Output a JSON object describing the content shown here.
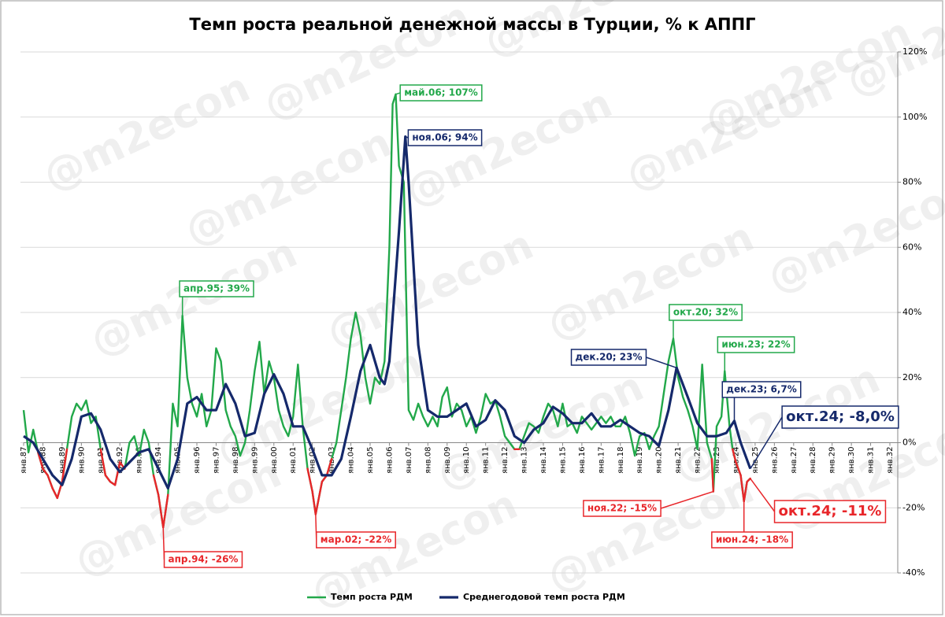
{
  "chart_data": {
    "type": "line",
    "title": "Темп роста реальной денежной массы в Турции, % к АППГ",
    "watermark": "@m2econ",
    "xlim": [
      1987,
      2032
    ],
    "xticks": [
      {
        "value": 1987,
        "label": "янв.87"
      },
      {
        "value": 1988,
        "label": "янв.88"
      },
      {
        "value": 1989,
        "label": "янв.89"
      },
      {
        "value": 1990,
        "label": "янв.90"
      },
      {
        "value": 1991,
        "label": "янв.91"
      },
      {
        "value": 1992,
        "label": "янв.92"
      },
      {
        "value": 1993,
        "label": "янв.93"
      },
      {
        "value": 1994,
        "label": "янв.94"
      },
      {
        "value": 1995,
        "label": "янв.95"
      },
      {
        "value": 1996,
        "label": "янв.96"
      },
      {
        "value": 1997,
        "label": "янв.97"
      },
      {
        "value": 1998,
        "label": "янв.98"
      },
      {
        "value": 1999,
        "label": "янв.99"
      },
      {
        "value": 2000,
        "label": "янв.00"
      },
      {
        "value": 2001,
        "label": "янв.01"
      },
      {
        "value": 2002,
        "label": "янв.02"
      },
      {
        "value": 2003,
        "label": "янв.03"
      },
      {
        "value": 2004,
        "label": "янв.04"
      },
      {
        "value": 2005,
        "label": "янв.05"
      },
      {
        "value": 2006,
        "label": "янв.06"
      },
      {
        "value": 2007,
        "label": "янв.07"
      },
      {
        "value": 2008,
        "label": "янв.08"
      },
      {
        "value": 2009,
        "label": "янв.09"
      },
      {
        "value": 2010,
        "label": "янв.10"
      },
      {
        "value": 2011,
        "label": "янв.11"
      },
      {
        "value": 2012,
        "label": "янв.12"
      },
      {
        "value": 2013,
        "label": "янв.13"
      },
      {
        "value": 2014,
        "label": "янв.14"
      },
      {
        "value": 2015,
        "label": "янв.15"
      },
      {
        "value": 2016,
        "label": "янв.16"
      },
      {
        "value": 2017,
        "label": "янв.17"
      },
      {
        "value": 2018,
        "label": "янв.18"
      },
      {
        "value": 2019,
        "label": "янв.19"
      },
      {
        "value": 2020,
        "label": "янв.20"
      },
      {
        "value": 2021,
        "label": "янв.21"
      },
      {
        "value": 2022,
        "label": "янв.22"
      },
      {
        "value": 2023,
        "label": "янв.23"
      },
      {
        "value": 2024,
        "label": "янв.24"
      },
      {
        "value": 2025,
        "label": "янв.25"
      },
      {
        "value": 2026,
        "label": "янв.26"
      },
      {
        "value": 2027,
        "label": "янв.27"
      },
      {
        "value": 2028,
        "label": "янв.28"
      },
      {
        "value": 2029,
        "label": "янв.29"
      },
      {
        "value": 2030,
        "label": "янв.30"
      },
      {
        "value": 2031,
        "label": "янв.31"
      },
      {
        "value": 2032,
        "label": "янв.32"
      }
    ],
    "ylim": [
      -40,
      120
    ],
    "yticks": [
      {
        "value": -40,
        "label": "-40%"
      },
      {
        "value": -20,
        "label": "-20%"
      },
      {
        "value": 0,
        "label": "0%"
      },
      {
        "value": 20,
        "label": "20%"
      },
      {
        "value": 40,
        "label": "40%"
      },
      {
        "value": 60,
        "label": "60%"
      },
      {
        "value": 80,
        "label": "80%"
      },
      {
        "value": 100,
        "label": "100%"
      },
      {
        "value": 120,
        "label": "120%"
      }
    ],
    "grid": true,
    "legend": "bottom",
    "series": [
      {
        "name": "Темп роста РДМ",
        "color": "#22a84a",
        "negative_color": "#e8262a",
        "x": [
          1987,
          1987.25,
          1987.5,
          1987.75,
          1988,
          1988.25,
          1988.5,
          1988.75,
          1989,
          1989.25,
          1989.5,
          1989.75,
          1990,
          1990.25,
          1990.5,
          1990.75,
          1991,
          1991.25,
          1991.5,
          1991.75,
          1992,
          1992.25,
          1992.5,
          1992.75,
          1993,
          1993.25,
          1993.5,
          1993.75,
          1994,
          1994.25,
          1994.5,
          1994.75,
          1995,
          1995.25,
          1995.5,
          1995.75,
          1996,
          1996.25,
          1996.5,
          1996.75,
          1997,
          1997.25,
          1997.5,
          1997.75,
          1998,
          1998.25,
          1998.5,
          1998.75,
          1999,
          1999.25,
          1999.5,
          1999.75,
          2000,
          2000.25,
          2000.5,
          2000.75,
          2001,
          2001.25,
          2001.5,
          2001.75,
          2002,
          2002.17,
          2002.5,
          2002.75,
          2003,
          2003.25,
          2003.5,
          2003.75,
          2004,
          2004.25,
          2004.5,
          2004.75,
          2005,
          2005.25,
          2005.5,
          2005.75,
          2006,
          2006.17,
          2006.33,
          2006.5,
          2006.75,
          2007,
          2007.25,
          2007.5,
          2007.75,
          2008,
          2008.25,
          2008.5,
          2008.75,
          2009,
          2009.25,
          2009.5,
          2009.75,
          2010,
          2010.25,
          2010.5,
          2010.75,
          2011,
          2011.25,
          2011.5,
          2011.75,
          2012,
          2012.25,
          2012.5,
          2012.75,
          2013,
          2013.25,
          2013.5,
          2013.75,
          2014,
          2014.25,
          2014.5,
          2014.75,
          2015,
          2015.25,
          2015.5,
          2015.75,
          2016,
          2016.25,
          2016.5,
          2016.75,
          2017,
          2017.25,
          2017.5,
          2017.75,
          2018,
          2018.25,
          2018.5,
          2018.75,
          2019,
          2019.25,
          2019.5,
          2019.75,
          2020,
          2020.25,
          2020.5,
          2020.75,
          2021,
          2021.25,
          2021.5,
          2021.75,
          2022,
          2022.25,
          2022.5,
          2022.75,
          2022.83,
          2023,
          2023.25,
          2023.42,
          2023.67,
          2023.83,
          2024,
          2024.25,
          2024.42,
          2024.58,
          2024.75
        ],
        "values": [
          10,
          -3,
          4,
          -3,
          -8,
          -10,
          -14,
          -17,
          -12,
          -2,
          8,
          12,
          10,
          13,
          6,
          8,
          -2,
          -10,
          -12,
          -13,
          -6,
          -8,
          0,
          2,
          -4,
          4,
          0,
          -10,
          -16,
          -26,
          -16,
          12,
          5,
          39,
          20,
          12,
          8,
          15,
          5,
          10,
          29,
          25,
          10,
          5,
          2,
          -4,
          0,
          10,
          22,
          31,
          15,
          25,
          20,
          10,
          5,
          2,
          8,
          24,
          5,
          -8,
          -15,
          -22,
          -12,
          -10,
          -5,
          0,
          10,
          20,
          32,
          40,
          33,
          20,
          12,
          20,
          18,
          25,
          60,
          104,
          107,
          85,
          80,
          10,
          7,
          12,
          8,
          5,
          8,
          5,
          14,
          17,
          8,
          12,
          10,
          5,
          8,
          3,
          8,
          15,
          12,
          13,
          8,
          2,
          0,
          -2,
          -2,
          2,
          6,
          5,
          3,
          8,
          12,
          10,
          5,
          12,
          5,
          6,
          3,
          8,
          6,
          4,
          6,
          8,
          6,
          8,
          5,
          5,
          8,
          3,
          -4,
          2,
          3,
          -2,
          2,
          5,
          15,
          25,
          32,
          20,
          14,
          10,
          5,
          -2,
          24,
          0,
          -5,
          -15,
          5,
          8,
          22,
          5,
          -2,
          -6,
          -10,
          -18,
          -12,
          -11
        ]
      },
      {
        "name": "Среднегодовой темп роста РДМ",
        "color": "#15296b",
        "x": [
          1987,
          1987.5,
          1988,
          1988.5,
          1989,
          1989.5,
          1990,
          1990.5,
          1991,
          1991.5,
          1992,
          1992.5,
          1993,
          1993.5,
          1994,
          1994.5,
          1995,
          1995.5,
          1996,
          1996.5,
          1997,
          1997.5,
          1998,
          1998.5,
          1999,
          1999.5,
          2000,
          2000.5,
          2001,
          2001.5,
          2002,
          2002.5,
          2003,
          2003.5,
          2004,
          2004.5,
          2005,
          2005.5,
          2005.75,
          2006,
          2006.5,
          2006.83,
          2007,
          2007.5,
          2008,
          2008.5,
          2009,
          2009.5,
          2010,
          2010.5,
          2011,
          2011.5,
          2012,
          2012.5,
          2013,
          2013.5,
          2014,
          2014.5,
          2015,
          2015.5,
          2016,
          2016.5,
          2017,
          2017.5,
          2018,
          2018.5,
          2019,
          2019.5,
          2020,
          2020.5,
          2020.92,
          2021.5,
          2022,
          2022.5,
          2023,
          2023.5,
          2023.92,
          2024.25,
          2024.75
        ],
        "values": [
          2,
          0,
          -5,
          -10,
          -13,
          -5,
          8,
          9,
          4,
          -5,
          -9,
          -6,
          -3,
          -2,
          -8,
          -14,
          -5,
          12,
          14,
          10,
          10,
          18,
          12,
          2,
          3,
          15,
          21,
          15,
          5,
          5,
          -2,
          -10,
          -10,
          -5,
          8,
          22,
          30,
          20,
          18,
          25,
          65,
          94,
          80,
          30,
          10,
          8,
          8,
          10,
          12,
          5,
          7,
          13,
          10,
          2,
          0,
          4,
          6,
          11,
          9,
          6,
          6,
          9,
          5,
          5,
          7,
          5,
          3,
          2,
          -1,
          10,
          23,
          14,
          6,
          2,
          2,
          3,
          6.7,
          0,
          -8
        ]
      }
    ],
    "annotations": [
      {
        "text": "май.06; 107%",
        "x": 2006.33,
        "y": 107,
        "color": "#22a84a"
      },
      {
        "text": "ноя.06; 94%",
        "x": 2006.83,
        "y": 94,
        "color": "#15296b"
      },
      {
        "text": "апр.95; 39%",
        "x": 1995.25,
        "y": 39,
        "color": "#22a84a"
      },
      {
        "text": "окт.20; 32%",
        "x": 2020.75,
        "y": 32,
        "color": "#22a84a"
      },
      {
        "text": "июн.23; 22%",
        "x": 2023.42,
        "y": 22,
        "color": "#22a84a"
      },
      {
        "text": "дек.20; 23%",
        "x": 2020.92,
        "y": 23,
        "color": "#15296b"
      },
      {
        "text": "дек.23; 6,7%",
        "x": 2023.92,
        "y": 6.7,
        "color": "#15296b"
      },
      {
        "text": "окт.24; -8,0%",
        "x": 2024.75,
        "y": -8,
        "color": "#15296b"
      },
      {
        "text": "апр.94; -26%",
        "x": 1994.25,
        "y": -26,
        "color": "#e8262a"
      },
      {
        "text": "мар.02; -22%",
        "x": 2002.17,
        "y": -22,
        "color": "#e8262a"
      },
      {
        "text": "ноя.22; -15%",
        "x": 2022.83,
        "y": -15,
        "color": "#e8262a"
      },
      {
        "text": "июн.24; -18%",
        "x": 2024.42,
        "y": -18,
        "color": "#e8262a"
      },
      {
        "text": "окт.24; -11%",
        "x": 2024.75,
        "y": -11,
        "color": "#e8262a"
      }
    ]
  }
}
